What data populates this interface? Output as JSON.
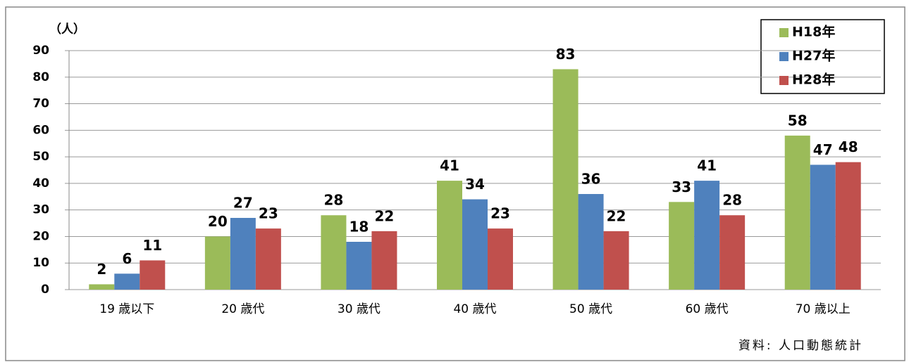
{
  "chart_data": {
    "type": "bar",
    "y_label": "（人）",
    "source": "資料: 人口動態統計",
    "categories": [
      "19 歳以下",
      "20 歳代",
      "30 歳代",
      "40 歳代",
      "50 歳代",
      "60 歳代",
      "70 歳以上"
    ],
    "series": [
      {
        "name": "H18年",
        "color": "#9bbb59",
        "values": [
          2,
          20,
          28,
          41,
          83,
          33,
          58
        ]
      },
      {
        "name": "H27年",
        "color": "#4f81bd",
        "values": [
          6,
          27,
          18,
          34,
          36,
          41,
          47
        ]
      },
      {
        "name": "H28年",
        "color": "#c0504d",
        "values": [
          11,
          23,
          22,
          23,
          22,
          28,
          48
        ]
      }
    ],
    "ylim": [
      0,
      90
    ],
    "yticks": [
      0,
      10,
      20,
      30,
      40,
      50,
      60,
      70,
      80,
      90
    ],
    "grid": true,
    "legend": "top-right"
  }
}
